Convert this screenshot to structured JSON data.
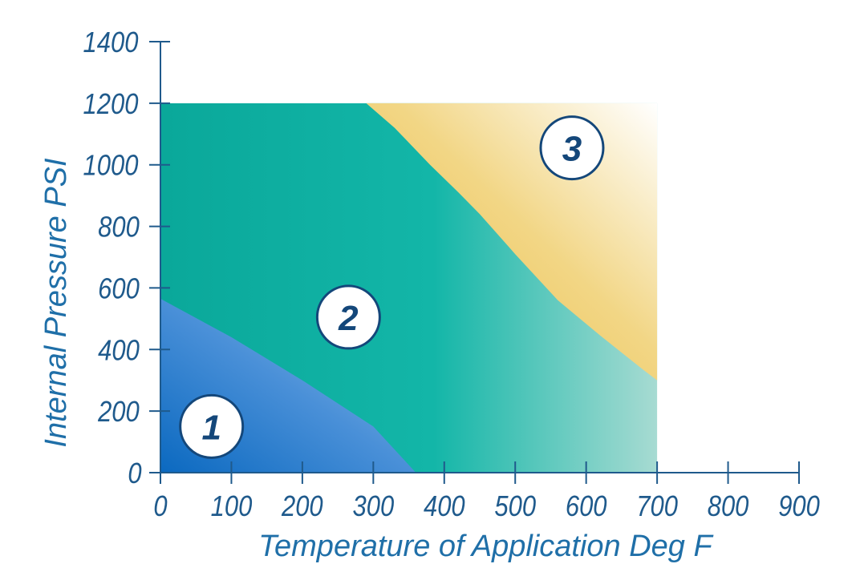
{
  "chart_data": {
    "type": "area",
    "title": "",
    "xlabel": "Temperature of Application Deg F",
    "ylabel": "Internal Pressure PSI",
    "xlim": [
      0,
      900
    ],
    "ylim": [
      0,
      1400
    ],
    "x_ticks": [
      "0",
      "100",
      "200",
      "300",
      "400",
      "500",
      "600",
      "700",
      "800",
      "900"
    ],
    "y_ticks": [
      "0",
      "200",
      "400",
      "600",
      "800",
      "1000",
      "1200",
      "1400"
    ],
    "grid": false,
    "legend": "none",
    "regions": [
      {
        "label": "1",
        "color": "#0f72c4",
        "label_at": [
          72,
          150
        ],
        "boundary": [
          [
            0,
            0
          ],
          [
            0,
            565
          ],
          [
            100,
            440
          ],
          [
            200,
            300
          ],
          [
            300,
            150
          ],
          [
            360,
            0
          ]
        ]
      },
      {
        "label": "2",
        "color": "#0fb3a6",
        "label_at": [
          265,
          505
        ],
        "boundary": [
          [
            0,
            0
          ],
          [
            0,
            1200
          ],
          [
            700,
            1200
          ],
          [
            700,
            0
          ]
        ]
      },
      {
        "label": "3",
        "color": "#ecc54c",
        "label_at": [
          580,
          1055
        ],
        "boundary": [
          [
            290,
            1200
          ],
          [
            330,
            1120
          ],
          [
            380,
            1000
          ],
          [
            420,
            910
          ],
          [
            450,
            840
          ],
          [
            500,
            710
          ],
          [
            560,
            560
          ],
          [
            620,
            445
          ],
          [
            680,
            335
          ],
          [
            700,
            300
          ],
          [
            700,
            1200
          ]
        ]
      }
    ]
  }
}
